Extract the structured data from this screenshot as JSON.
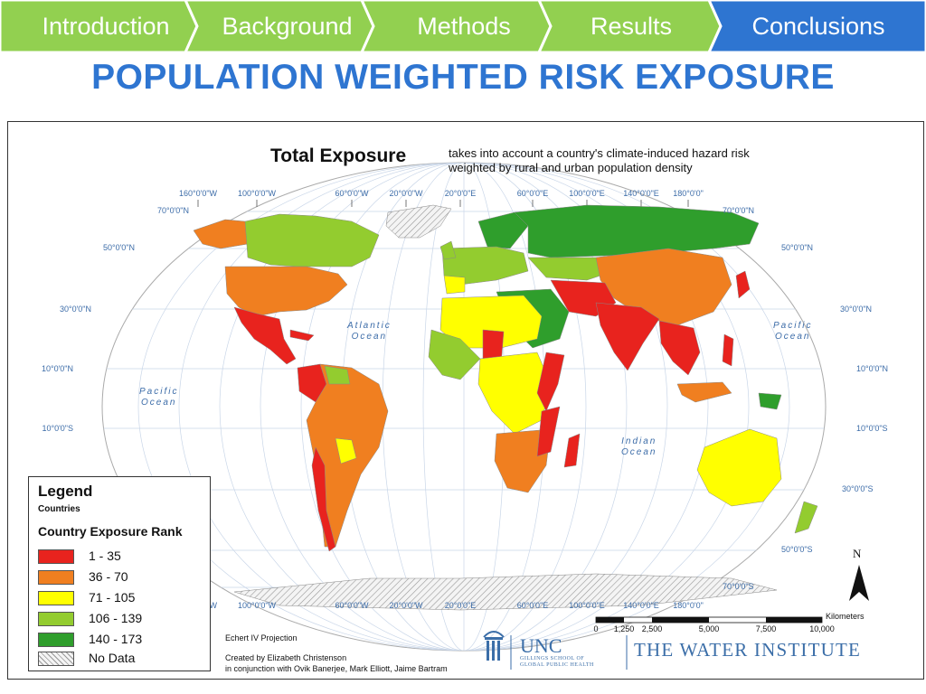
{
  "nav": {
    "tabs": [
      {
        "label": "Introduction",
        "color": "#92D050"
      },
      {
        "label": "Background",
        "color": "#92D050"
      },
      {
        "label": "Methods",
        "color": "#92D050"
      },
      {
        "label": "Results",
        "color": "#92D050"
      },
      {
        "label": "Conclusions",
        "color": "#2E75D1"
      }
    ],
    "active": "Conclusions"
  },
  "slide": {
    "title": "POPULATION WEIGHTED RISK EXPOSURE"
  },
  "map": {
    "title": "Total Exposure",
    "subtitle": "takes into account a country's climate-induced hazard risk weighted by rural and urban population density",
    "longitude_labels": [
      "160°0'0\"W",
      "100°0'0\"W",
      "60°0'0\"W",
      "20°0'0\"W",
      "20°0'0\"E",
      "60°0'0\"E",
      "100°0'0\"E",
      "140°0'0\"E",
      "180°0'0\""
    ],
    "lat_left": [
      "70°0'0\"N",
      "50°0'0\"N",
      "30°0'0\"N",
      "10°0'0\"N",
      "10°0'0\"S"
    ],
    "lat_right": [
      "70°0'0\"N",
      "50°0'0\"N",
      "30°0'0\"N",
      "10°0'0\"N",
      "10°0'0\"S",
      "30°0'0\"S",
      "50°0'0\"S",
      "70°0'0\"S"
    ],
    "oceans": {
      "atlantic": [
        "Atlantic",
        "Ocean"
      ],
      "pacific_west": [
        "Pacific",
        "Ocean"
      ],
      "pacific_east": [
        "Pacific",
        "Ocean"
      ],
      "indian": [
        "Indian",
        "Ocean"
      ]
    },
    "north_arrow": "N",
    "projection": "Echert IV Projection",
    "credit": [
      "Created by Elizabeth Christenson",
      "in conjunction with Ovik Banerjee, Mark Elliott, Jaime Bartram"
    ],
    "scale": {
      "units": "Kilometers",
      "labels": [
        "0",
        "1,250",
        "2,500",
        "5,000",
        "7,500",
        "10,000"
      ]
    },
    "legend": {
      "title": "Legend",
      "countries_label": "Countries",
      "rank_title": "Country Exposure Rank",
      "items": [
        {
          "label": "1 - 35",
          "color": "#E8231E"
        },
        {
          "label": "36 - 70",
          "color": "#F07F20"
        },
        {
          "label": "71 - 105",
          "color": "#FFFF00"
        },
        {
          "label": "106 - 139",
          "color": "#93CC2F"
        },
        {
          "label": "140 - 173",
          "color": "#2F9E2C"
        },
        {
          "label": "No Data",
          "color": "hatched"
        }
      ]
    },
    "logos": {
      "unc": "UNC",
      "unc_sub": [
        "GILLINGS SCHOOL OF",
        "GLOBAL PUBLIC HEALTH"
      ],
      "water": "THE WATER INSTITUTE"
    }
  }
}
